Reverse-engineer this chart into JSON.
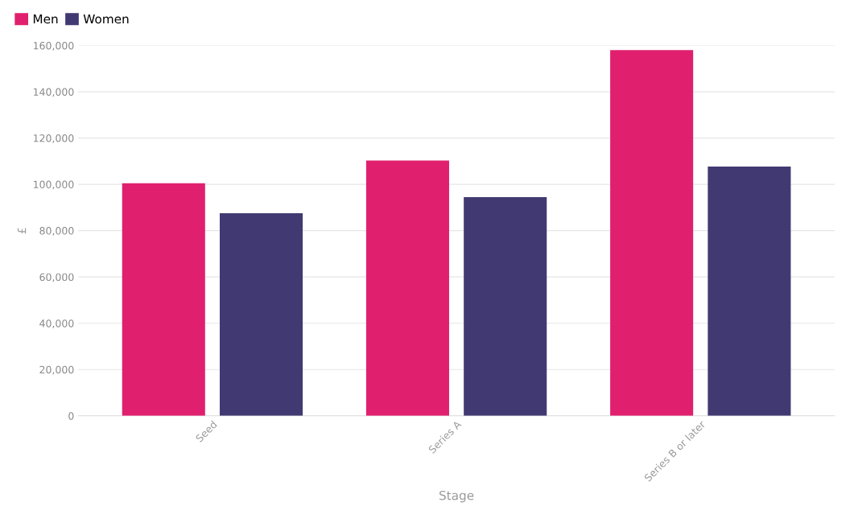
{
  "chart_data": {
    "type": "bar",
    "xlabel": "Stage",
    "ylabel": "£",
    "categories": [
      "Seed",
      "Series A",
      "Series B or later"
    ],
    "series": [
      {
        "name": "Men",
        "color": "#e0206e",
        "values": [
          100500,
          110300,
          158000
        ]
      },
      {
        "name": "Women",
        "color": "#413a72",
        "values": [
          87500,
          94500,
          107700
        ]
      }
    ],
    "ylim": [
      0,
      160000
    ],
    "yticks": [
      {
        "value": 0,
        "label": "0"
      },
      {
        "value": 20000,
        "label": "20,000"
      },
      {
        "value": 40000,
        "label": "40,000"
      },
      {
        "value": 60000,
        "label": "60,000"
      },
      {
        "value": 80000,
        "label": "80,000"
      },
      {
        "value": 100000,
        "label": "100,000"
      },
      {
        "value": 120000,
        "label": "120,000"
      },
      {
        "value": 140000,
        "label": "140,000"
      },
      {
        "value": 160000,
        "label": "160,000"
      }
    ],
    "grid": "y",
    "legend": "top left"
  }
}
